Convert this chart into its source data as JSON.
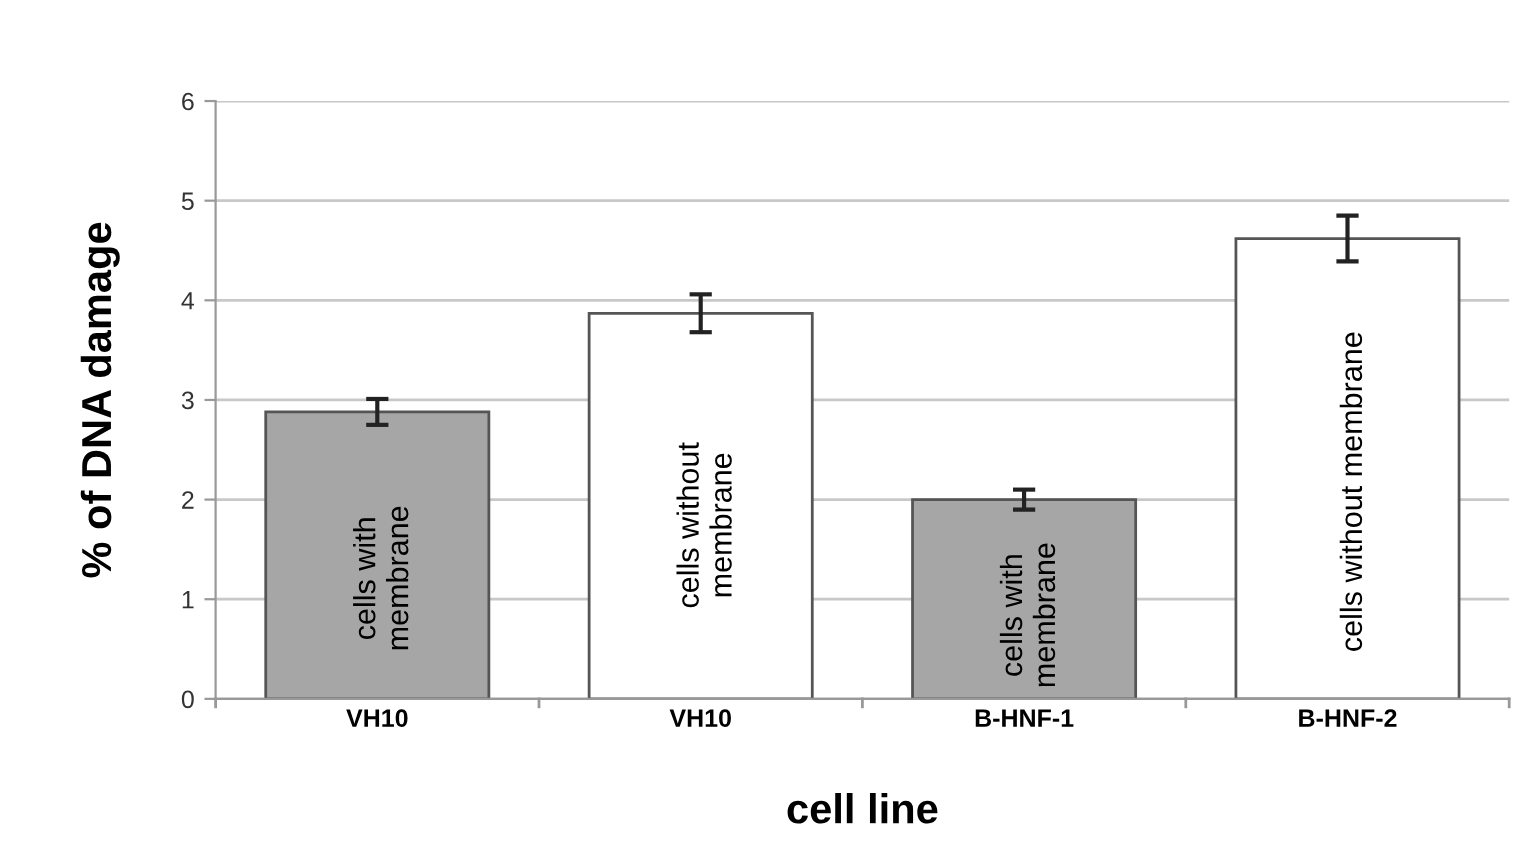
{
  "chart_data": {
    "type": "bar",
    "xlabel": "cell line",
    "ylabel": "% of DNA damage",
    "categories": [
      "VH10",
      "VH10",
      "B-HNF-1",
      "B-HNF-2"
    ],
    "values": [
      2.88,
      3.87,
      2.0,
      4.62
    ],
    "errors": [
      0.13,
      0.19,
      0.1,
      0.23
    ],
    "colors": [
      "#a6a6a6",
      "#ffffff",
      "#a6a6a6",
      "#ffffff"
    ],
    "annotations": [
      "cells with\nmembrane",
      "cells without\nmembrane",
      "cells with\nmembrane",
      "cells without membrane"
    ],
    "ylim": [
      0,
      6
    ],
    "yticks": [
      0,
      1,
      2,
      3,
      4,
      5,
      6
    ],
    "grid": "y"
  }
}
